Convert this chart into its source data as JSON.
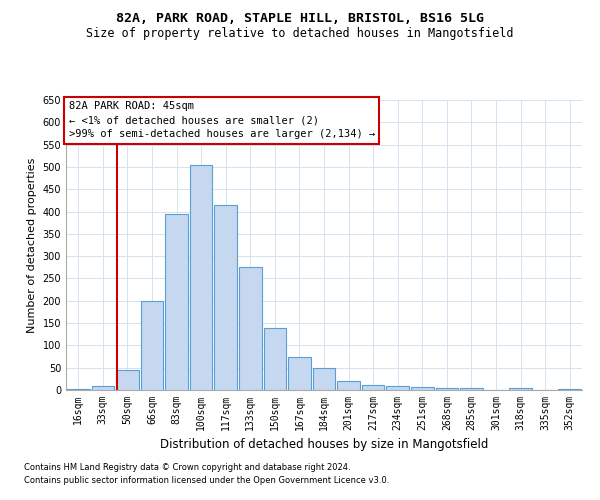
{
  "title": "82A, PARK ROAD, STAPLE HILL, BRISTOL, BS16 5LG",
  "subtitle": "Size of property relative to detached houses in Mangotsfield",
  "xlabel": "Distribution of detached houses by size in Mangotsfield",
  "ylabel": "Number of detached properties",
  "categories": [
    "16sqm",
    "33sqm",
    "50sqm",
    "66sqm",
    "83sqm",
    "100sqm",
    "117sqm",
    "133sqm",
    "150sqm",
    "167sqm",
    "184sqm",
    "201sqm",
    "217sqm",
    "234sqm",
    "251sqm",
    "268sqm",
    "285sqm",
    "301sqm",
    "318sqm",
    "335sqm",
    "352sqm"
  ],
  "values": [
    2,
    10,
    45,
    200,
    395,
    505,
    415,
    275,
    138,
    75,
    50,
    20,
    12,
    8,
    6,
    5,
    5,
    0,
    5,
    0,
    2
  ],
  "bar_color": "#c5d8f0",
  "bar_edge_color": "#5a9fd4",
  "bar_edge_width": 0.8,
  "red_line_x": 1.57,
  "annotation_line1": "82A PARK ROAD: 45sqm",
  "annotation_line2": "← <1% of detached houses are smaller (2)",
  "annotation_line3": ">99% of semi-detached houses are larger (2,134) →",
  "annotation_box_color": "#ffffff",
  "annotation_box_edge": "#cc0000",
  "red_line_color": "#cc0000",
  "grid_color": "#d4e2ef",
  "background_color": "#ffffff",
  "ylim": [
    0,
    650
  ],
  "yticks": [
    0,
    50,
    100,
    150,
    200,
    250,
    300,
    350,
    400,
    450,
    500,
    550,
    600,
    650
  ],
  "footer_line1": "Contains HM Land Registry data © Crown copyright and database right 2024.",
  "footer_line2": "Contains public sector information licensed under the Open Government Licence v3.0.",
  "title_fontsize": 9.5,
  "subtitle_fontsize": 8.5,
  "ylabel_fontsize": 8,
  "xlabel_fontsize": 8.5,
  "tick_fontsize": 7,
  "annotation_fontsize": 7.5,
  "footer_fontsize": 6
}
